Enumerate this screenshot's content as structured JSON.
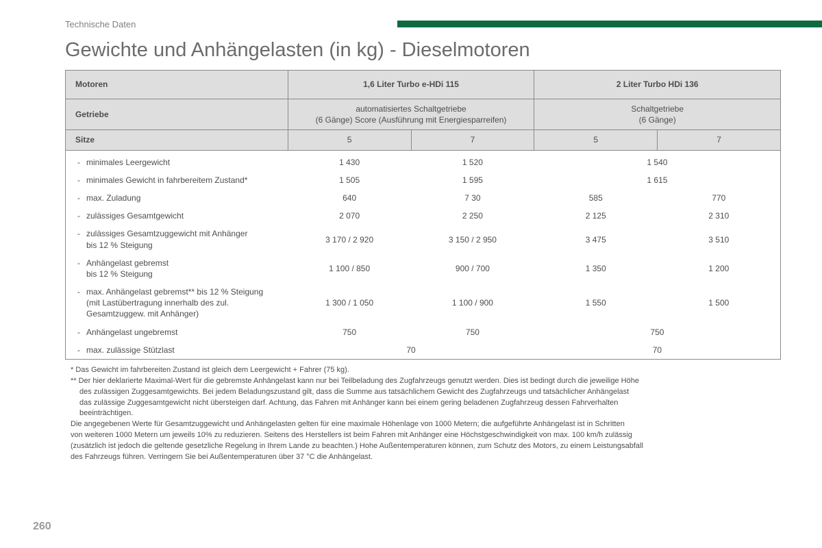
{
  "section_label": "Technische Daten",
  "page_title": "Gewichte und Anhängelasten (in kg) - Dieselmotoren",
  "page_number": "260",
  "accent_color": "#0d6b3f",
  "header_bg": "#dedede",
  "border_color": "#8a8a8a",
  "text_color": "#4d4d4d",
  "columns": {
    "label": "Motoren",
    "engine1": "1,6 Liter Turbo e-HDi 115",
    "engine2": "2 Liter Turbo HDi 136",
    "gearbox_label": "Getriebe",
    "gearbox1": "automatisiertes Schaltgetriebe\n(6 Gänge) Score (Ausführung mit Energiesparreifen)",
    "gearbox2": "Schaltgetriebe\n(6 Gänge)",
    "seats_label": "Sitze",
    "seats_a": "5",
    "seats_b": "7",
    "seats_c": "5",
    "seats_d": "7"
  },
  "rows": [
    {
      "label": "minimales Leergewicht",
      "a": "1 430",
      "b": "1 520",
      "cd": "1 540"
    },
    {
      "label": "minimales Gewicht in fahrbereitem Zustand*",
      "a": "1 505",
      "b": "1 595",
      "cd": "1 615"
    },
    {
      "label": "max. Zuladung",
      "a": "640",
      "b": "7 30",
      "c": "585",
      "d": "770"
    },
    {
      "label": "zulässiges Gesamtgewicht",
      "a": "2 070",
      "b": "2 250",
      "c": "2 125",
      "d": "2 310",
      "tall": true
    },
    {
      "label": "zulässiges Gesamtzuggewicht mit Anhänger\nbis 12 % Steigung",
      "a": "3 170 / 2 920",
      "b": "3 150 / 2 950",
      "c": "3 475",
      "d": "3 510",
      "tall": true
    },
    {
      "label": "Anhängelast gebremst\nbis 12 % Steigung",
      "a": "1 100 / 850",
      "b": "900 / 700",
      "c": "1 350",
      "d": "1 200",
      "tall": true
    },
    {
      "label": "max. Anhängelast gebremst** bis 12 % Steigung\n(mit Lastübertragung innerhalb des zul.\nGesamtzuggew. mit Anhänger)",
      "a": "1 300 / 1 050",
      "b": "1 100 / 900",
      "c": "1 550",
      "d": "1 500",
      "tall": true
    },
    {
      "label": "Anhängelast ungebremst",
      "a": "750",
      "b": "750",
      "cd": "750"
    },
    {
      "label": "max. zulässige Stützlast",
      "ab": "70",
      "cd": "70"
    }
  ],
  "footnotes": {
    "n1": "* Das Gewicht im fahrbereiten Zustand ist gleich dem Leergewicht + Fahrer (75 kg).",
    "n2a": "** Der hier deklarierte Maximal-Wert für die gebremste Anhängelast kann nur bei Teilbeladung des Zugfahrzeugs genutzt werden. Dies ist bedingt durch die jeweilige Höhe",
    "n2b": "des zulässigen Zuggesamtgewichts. Bei jedem Beladungszustand gilt, dass die Summe aus tatsächlichem Gewicht des Zugfahrzeugs und tatsächlicher Anhängelast",
    "n2c": "das zulässige Zuggesamtgewicht nicht übersteigen darf. Achtung, das Fahren mit Anhänger kann bei einem gering beladenen Zugfahrzeug dessen Fahrverhalten",
    "n2d": "beeinträchtigen.",
    "n3a": "Die angegebenen Werte für Gesamtzuggewicht und Anhängelasten gelten für eine maximale Höhenlage von 1000 Metern; die aufgeführte Anhängelast ist in Schritten",
    "n3b": "von weiteren 1000 Metern um jeweils 10% zu reduzieren. Seitens des Herstellers ist beim Fahren mit Anhänger eine Höchstgeschwindigkeit von max. 100 km/h zulässig",
    "n3c": "(zusätzlich ist jedoch die geltende gesetzliche Regelung in Ihrem Lande zu beachten.) Hohe Außentemperaturen können, zum Schutz des Motors, zu einem Leistungsabfall",
    "n3d": "des Fahrzeugs führen. Verringern Sie bei Außentemperaturen über 37 °C die Anhängelast."
  }
}
